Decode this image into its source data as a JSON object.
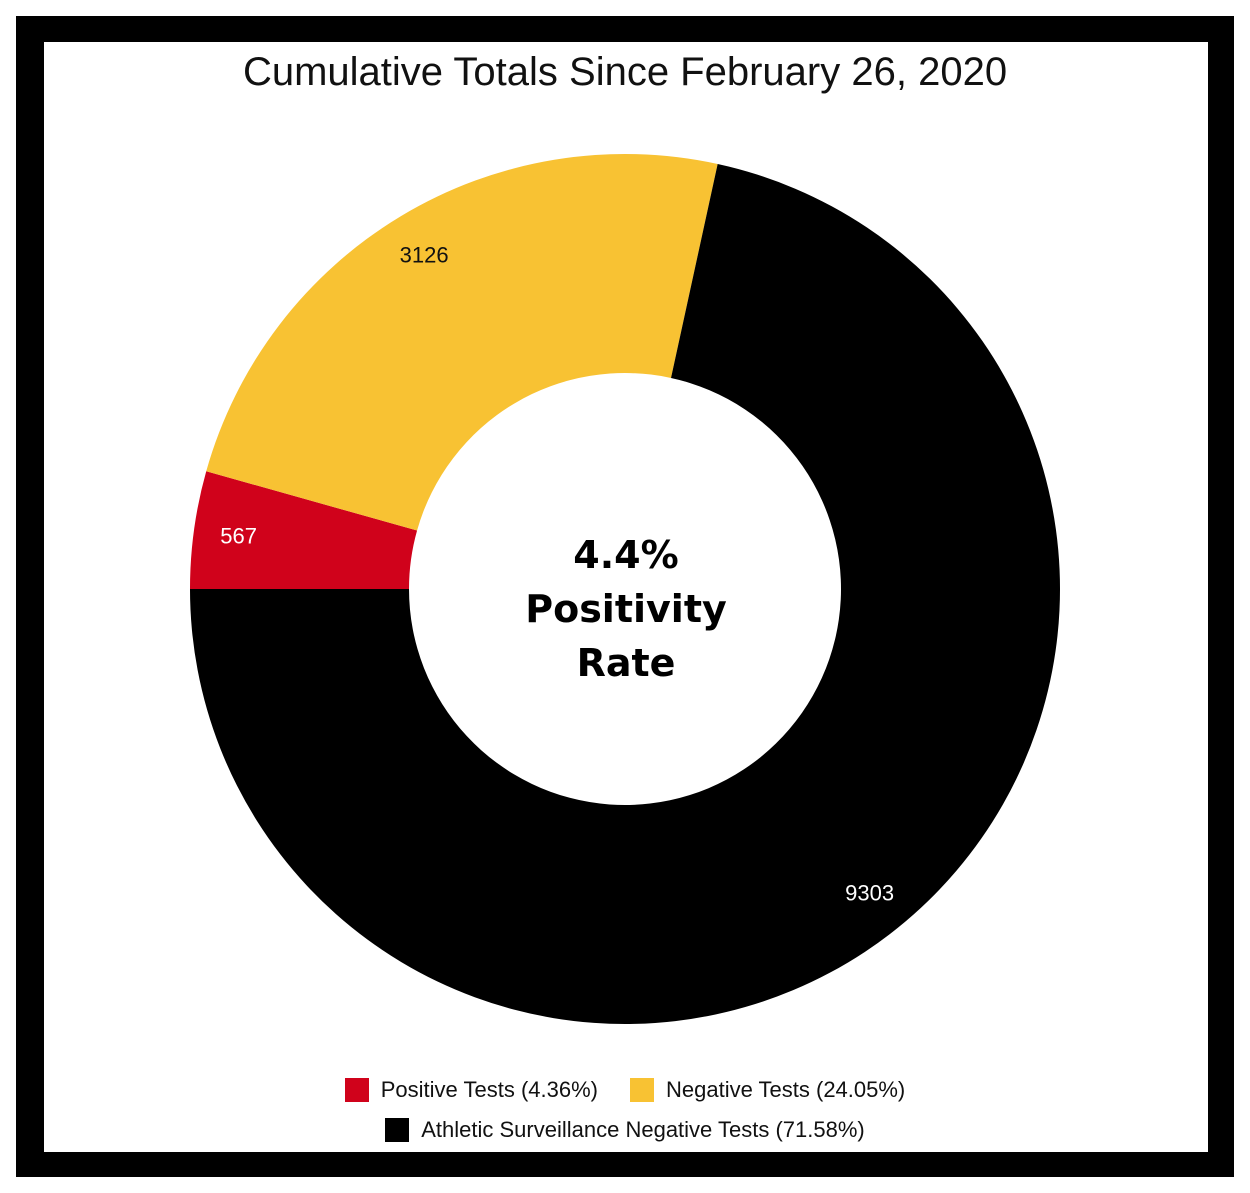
{
  "chart_data": {
    "type": "pie",
    "title": "Cumulative Totals Since February 26, 2020",
    "center_label": [
      "4.4%",
      "Positivity",
      "Rate"
    ],
    "slices": [
      {
        "name": "Positive Tests",
        "value": 567,
        "label": "567",
        "legend": "Positive Tests (4.36%)",
        "color": "#d0021b",
        "label_color": "#ffffff"
      },
      {
        "name": "Negative Tests",
        "value": 3126,
        "label": "3126",
        "legend": "Negative Tests (24.05%)",
        "color": "#f8c233",
        "label_color": "#111111"
      },
      {
        "name": "Athletic Surveillance Negative Tests",
        "value": 9303,
        "label": "9303",
        "legend": "Athletic Surveillance Negative Tests (71.58%)",
        "color": "#000000",
        "label_color": "#ffffff"
      }
    ],
    "legend_position": "bottom",
    "start_direction": "west",
    "direction": "clockwise"
  }
}
